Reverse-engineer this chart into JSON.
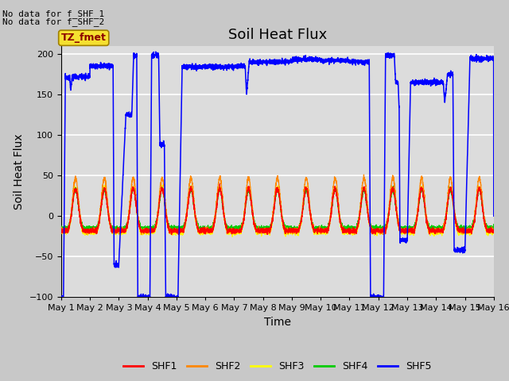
{
  "title": "Soil Heat Flux",
  "ylabel": "Soil Heat Flux",
  "xlabel": "Time",
  "xlim": [
    0,
    15
  ],
  "ylim": [
    -100,
    210
  ],
  "yticks": [
    -100,
    -50,
    0,
    50,
    100,
    150,
    200
  ],
  "xtick_labels": [
    "May 1",
    "May 2",
    "May 3",
    "May 4",
    "May 5",
    "May 6",
    "May 7",
    "May 8",
    "May 9",
    "May 10",
    "May 11",
    "May 12",
    "May 13",
    "May 14",
    "May 15",
    "May 16"
  ],
  "colors": {
    "SHF1": "#ff0000",
    "SHF2": "#ff8800",
    "SHF3": "#ffff00",
    "SHF4": "#00cc00",
    "SHF5": "#0000ff"
  },
  "annotation_text1": "No data for f_SHF_1",
  "annotation_text2": "No data for f_SHF_2",
  "box_label": "TZ_fmet",
  "bg_color": "#c8c8c8",
  "plot_bg_color": "#dcdcdc",
  "grid_color": "#ffffff",
  "title_fontsize": 13,
  "label_fontsize": 10,
  "tick_fontsize": 8
}
